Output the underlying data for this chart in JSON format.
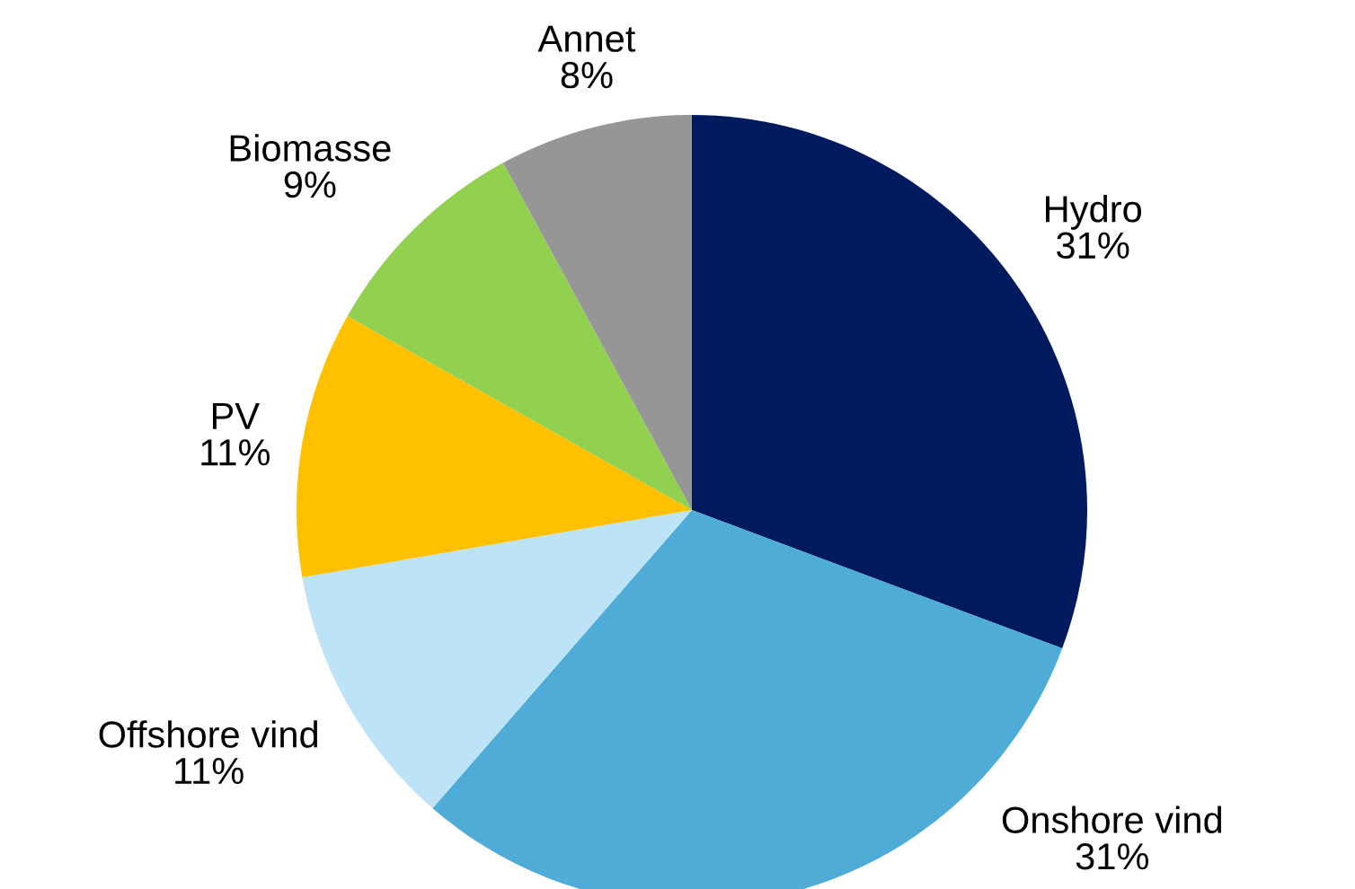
{
  "chart_data": {
    "type": "pie",
    "categories": [
      "Hydro",
      "Onshore vind",
      "Offshore vind",
      "PV",
      "Biomasse",
      "Annet"
    ],
    "values": [
      31,
      31,
      11,
      11,
      9,
      8
    ],
    "value_labels": [
      "31%",
      "31%",
      "11%",
      "11%",
      "9%",
      "8%"
    ],
    "colors": [
      "#001a5e",
      "#4eacd6",
      "#bde3f6",
      "#ffc000",
      "#92d050",
      "#969696"
    ],
    "legend": false
  }
}
